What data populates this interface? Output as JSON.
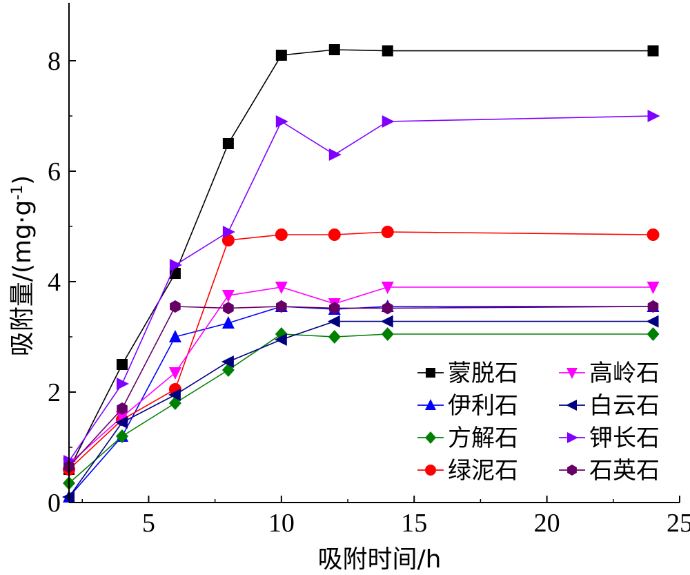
{
  "chart_data": {
    "type": "line",
    "title": "",
    "xlabel": "吸附时间/h",
    "ylabel_main": "吸附量/(mg·g",
    "ylabel_sup": "-1",
    "ylabel_tail": ")",
    "xlim": [
      2,
      25
    ],
    "ylim": [
      0,
      9
    ],
    "x_ticks": [
      5,
      10,
      15,
      20,
      25
    ],
    "y_ticks": [
      0,
      2,
      4,
      6,
      8
    ],
    "grid": false,
    "legend_position": "bottom-right",
    "x": [
      2,
      4,
      6,
      8,
      10,
      12,
      14,
      24
    ],
    "series": [
      {
        "name": "蒙脱石",
        "color": "#000000",
        "marker": "square",
        "values": [
          0.6,
          2.5,
          4.15,
          6.5,
          8.1,
          8.2,
          8.18,
          8.18
        ]
      },
      {
        "name": "伊利石",
        "color": "#0000ff",
        "marker": "triangle-up",
        "values": [
          0.1,
          1.2,
          3.0,
          3.25,
          3.55,
          3.5,
          3.55,
          3.55
        ]
      },
      {
        "name": "方解石",
        "color": "#008000",
        "marker": "diamond",
        "values": [
          0.35,
          1.2,
          1.8,
          2.4,
          3.05,
          3.0,
          3.05,
          3.05
        ]
      },
      {
        "name": "绿泥石",
        "color": "#ff0000",
        "marker": "circle",
        "values": [
          0.6,
          1.5,
          2.05,
          4.75,
          4.85,
          4.85,
          4.9,
          4.85
        ]
      },
      {
        "name": "高岭石",
        "color": "#ff00ff",
        "marker": "triangle-down",
        "values": [
          0.7,
          1.55,
          2.35,
          3.75,
          3.9,
          3.6,
          3.9,
          3.9
        ]
      },
      {
        "name": "白云石",
        "color": "#000080",
        "marker": "triangle-left",
        "values": [
          0.1,
          1.45,
          1.95,
          2.55,
          2.95,
          3.28,
          3.28,
          3.28
        ]
      },
      {
        "name": "钾长石",
        "color": "#8000ff",
        "marker": "triangle-right",
        "values": [
          0.75,
          2.15,
          4.3,
          4.9,
          6.9,
          6.3,
          6.9,
          7.0
        ]
      },
      {
        "name": "石英石",
        "color": "#660066",
        "marker": "hexagon",
        "values": [
          0.65,
          1.7,
          3.55,
          3.52,
          3.55,
          3.52,
          3.52,
          3.55
        ]
      }
    ]
  }
}
